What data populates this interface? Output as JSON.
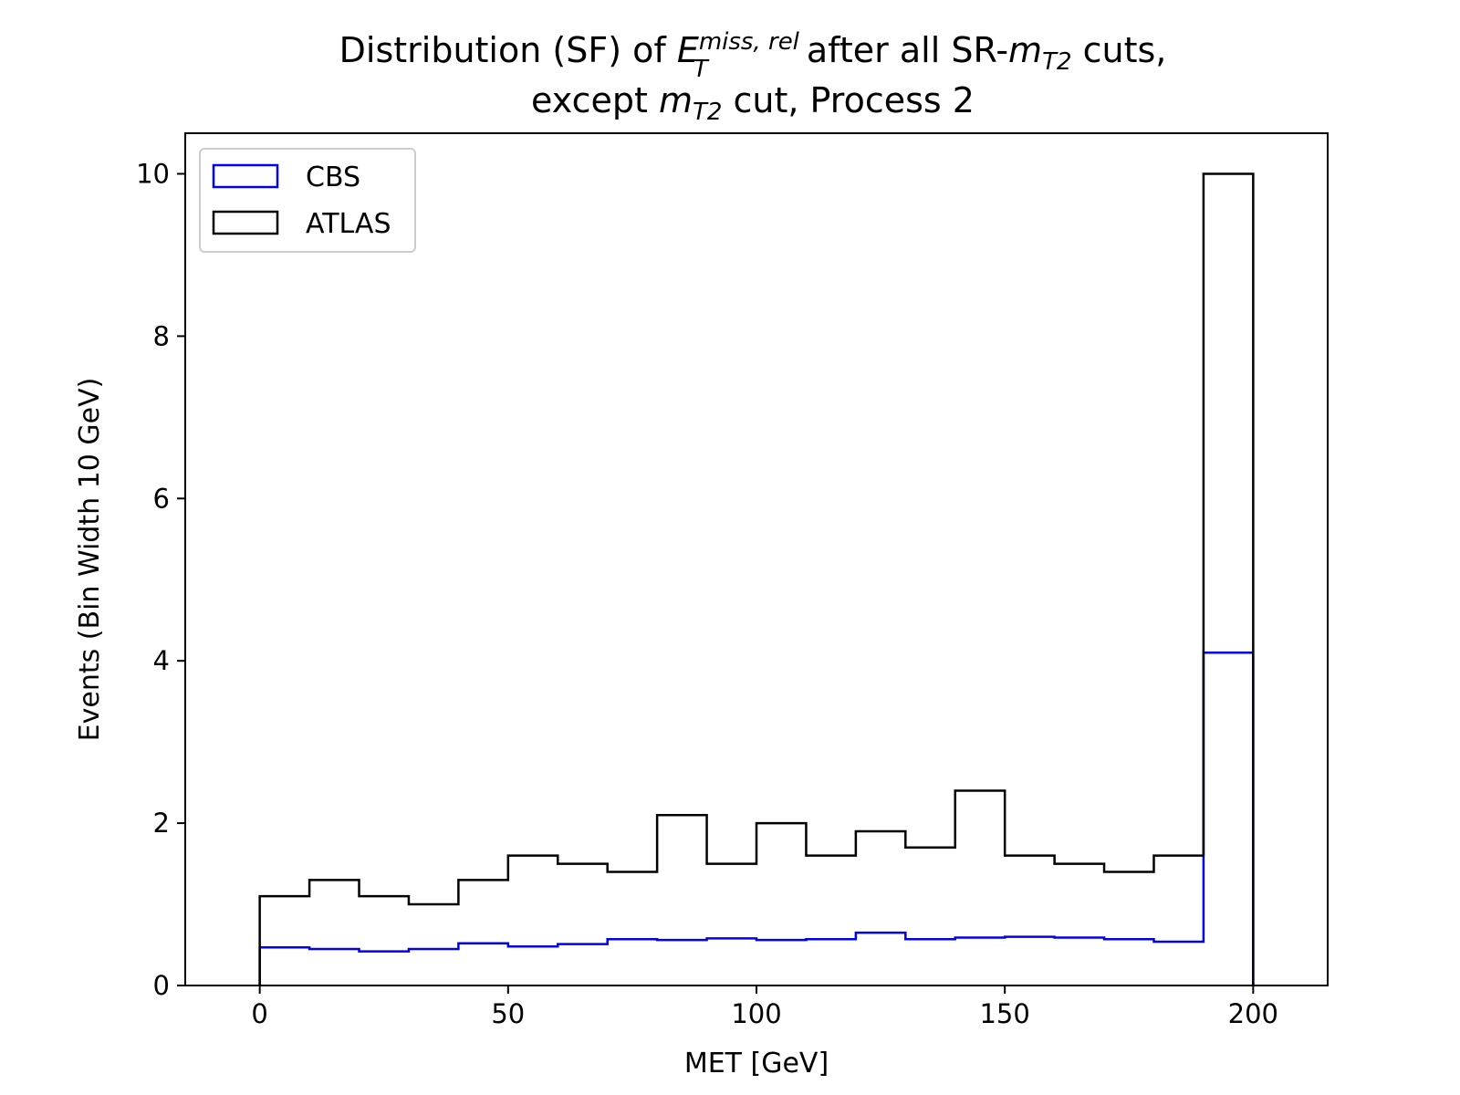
{
  "chart_data": {
    "type": "bar",
    "title": {
      "line1_pre": "Distribution (SF) of ",
      "line1_E": "E",
      "line1_E_sub": "T",
      "line1_E_sup": "miss, rel",
      "line1_mid": " after all SR-",
      "line1_m": "m",
      "line1_m_sub": "T2",
      "line1_post": " cuts,",
      "line2_pre": "except ",
      "line2_m": "m",
      "line2_m_sub": "T2",
      "line2_post": " cut, Process 2"
    },
    "xlabel": "MET [GeV]",
    "ylabel": "Events (Bin Width 10 GeV)",
    "xlim": [
      -15,
      215
    ],
    "ylim": [
      0,
      10.5
    ],
    "xticks": [
      0,
      50,
      100,
      150,
      200
    ],
    "yticks": [
      0,
      2,
      4,
      6,
      8,
      10
    ],
    "bin_edges": [
      0,
      10,
      20,
      30,
      40,
      50,
      60,
      70,
      80,
      90,
      100,
      110,
      120,
      130,
      140,
      150,
      160,
      170,
      180,
      190,
      200
    ],
    "histtype": "step",
    "legend_position": "upper-left",
    "grid": false,
    "series": [
      {
        "name": "CBS",
        "color": "#0000ee",
        "values": [
          0.47,
          0.45,
          0.42,
          0.45,
          0.52,
          0.48,
          0.51,
          0.57,
          0.56,
          0.58,
          0.56,
          0.57,
          0.65,
          0.57,
          0.59,
          0.6,
          0.59,
          0.57,
          0.54,
          4.1
        ]
      },
      {
        "name": "ATLAS",
        "color": "#000000",
        "values": [
          1.1,
          1.3,
          1.1,
          1.0,
          1.3,
          1.6,
          1.5,
          1.4,
          2.1,
          1.5,
          2.0,
          1.6,
          1.9,
          1.7,
          2.4,
          1.6,
          1.5,
          1.4,
          1.6,
          10.0
        ]
      }
    ]
  }
}
